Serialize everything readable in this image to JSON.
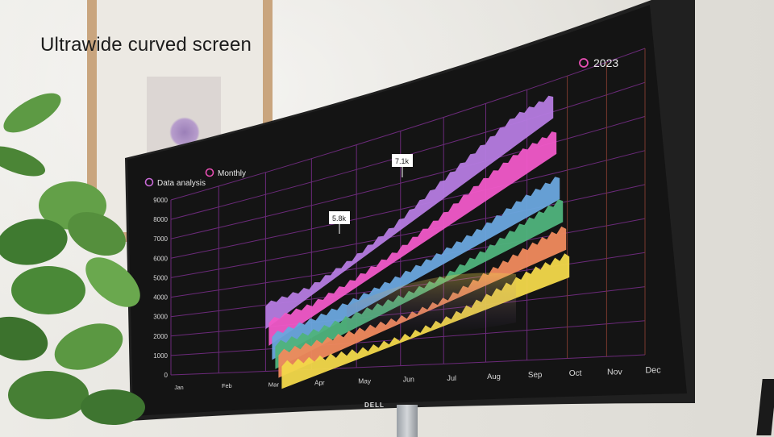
{
  "caption": {
    "title": "Ultrawide curved screen"
  },
  "screen": {
    "year_label": "2023",
    "legend": [
      {
        "label": "Data analysis",
        "color": "#c86ad6"
      },
      {
        "label": "Monthly",
        "color": "#e84fb4"
      }
    ],
    "brand": "DELL"
  },
  "chart_data": {
    "type": "area",
    "title": "",
    "xlabel": "",
    "ylabel": "",
    "y_ticks": [
      "9000",
      "8000",
      "7000",
      "6000",
      "5000",
      "4000",
      "3000",
      "2000",
      "1000",
      "0"
    ],
    "x_ticks": [
      "Jan",
      "Feb",
      "Mar",
      "Apr",
      "May",
      "Jun",
      "Jul",
      "Aug",
      "Sep",
      "Oct",
      "Nov",
      "Dec"
    ],
    "ylim": [
      0,
      9000
    ],
    "annotations": [
      {
        "label": "5.8k",
        "month": "May",
        "value": 5800
      },
      {
        "label": "7.1k",
        "month": "Jul",
        "value": 7100
      }
    ],
    "series": [
      {
        "name": "purple",
        "color": "#b57be0",
        "values": [
          3000,
          3600,
          4500,
          5400,
          6400,
          7300,
          8200,
          8600
        ]
      },
      {
        "name": "pink",
        "color": "#f058c8",
        "values": [
          2700,
          3200,
          3900,
          4600,
          5500,
          6500,
          7300,
          7700
        ]
      },
      {
        "name": "blue",
        "color": "#6aa6de",
        "values": [
          2400,
          2800,
          3300,
          3900,
          4600,
          5300,
          6000,
          6400
        ]
      },
      {
        "name": "green",
        "color": "#4fb37c",
        "values": [
          2200,
          2500,
          3000,
          3500,
          4100,
          4800,
          5400,
          5800
        ]
      },
      {
        "name": "coral",
        "color": "#f08a5d",
        "values": [
          2000,
          2300,
          2700,
          3100,
          3600,
          4200,
          4700,
          5100
        ]
      },
      {
        "name": "yellow",
        "color": "#f2d84a",
        "values": [
          1800,
          2000,
          2300,
          2700,
          3100,
          3600,
          4100,
          4500
        ]
      }
    ]
  }
}
